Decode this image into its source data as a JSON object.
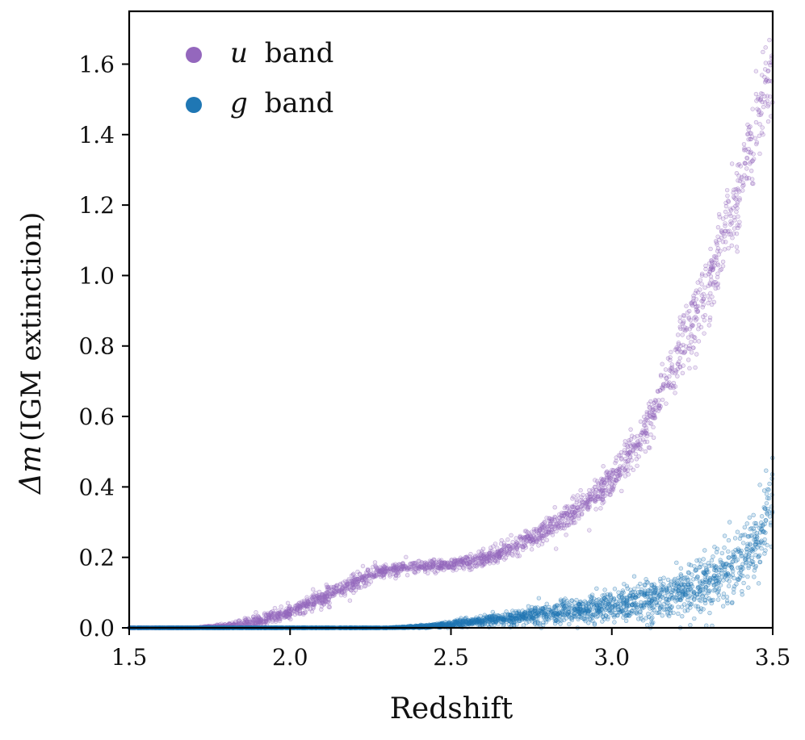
{
  "chart_data": {
    "type": "scatter",
    "title": "",
    "xlabel": "Redshift",
    "ylabel_symbol": "Δm",
    "ylabel_text": "(IGM extinction)",
    "xlim": [
      1.5,
      3.5
    ],
    "ylim": [
      0.0,
      1.75
    ],
    "xticks": [
      1.5,
      2.0,
      2.5,
      3.0,
      3.5
    ],
    "yticks": [
      0.0,
      0.2,
      0.4,
      0.6,
      0.8,
      1.0,
      1.2,
      1.4,
      1.6
    ],
    "xtick_labels": [
      "1.5",
      "2.0",
      "2.5",
      "3.0",
      "3.5"
    ],
    "ytick_labels": [
      "0.0",
      "0.2",
      "0.4",
      "0.6",
      "0.8",
      "1.0",
      "1.2",
      "1.4",
      "1.6"
    ],
    "grid": false,
    "legend_position": "top-left",
    "series": [
      {
        "name": "u band",
        "legend_symbol": "u",
        "legend_text": "band",
        "color": "#9467bd",
        "points": 2500,
        "curve_x": [
          1.5,
          1.7,
          1.8,
          1.9,
          2.0,
          2.1,
          2.2,
          2.27,
          2.35,
          2.5,
          2.6,
          2.7,
          2.8,
          2.9,
          3.0,
          3.1,
          3.2,
          3.3,
          3.4,
          3.5
        ],
        "curve_y": [
          0.0,
          0.0,
          0.005,
          0.02,
          0.045,
          0.085,
          0.13,
          0.16,
          0.17,
          0.18,
          0.195,
          0.23,
          0.28,
          0.34,
          0.42,
          0.55,
          0.75,
          0.98,
          1.25,
          1.62
        ],
        "scatter_width": [
          0.0,
          0.0,
          0.004,
          0.008,
          0.01,
          0.012,
          0.012,
          0.01,
          0.008,
          0.008,
          0.01,
          0.012,
          0.016,
          0.02,
          0.025,
          0.03,
          0.04,
          0.05,
          0.06,
          0.07
        ]
      },
      {
        "name": "g band",
        "legend_symbol": "g",
        "legend_text": "band",
        "color": "#1f77b4",
        "points": 3000,
        "curve_x": [
          1.5,
          2.2,
          2.3,
          2.4,
          2.5,
          2.6,
          2.7,
          2.8,
          2.9,
          3.0,
          3.1,
          3.2,
          3.3,
          3.4,
          3.45,
          3.5
        ],
        "curve_y": [
          0.0,
          0.0,
          0.0,
          0.003,
          0.01,
          0.02,
          0.03,
          0.04,
          0.05,
          0.06,
          0.075,
          0.095,
          0.125,
          0.18,
          0.24,
          0.36
        ],
        "scatter_width": [
          0.0,
          0.0,
          0.0,
          0.002,
          0.004,
          0.007,
          0.01,
          0.014,
          0.018,
          0.022,
          0.027,
          0.032,
          0.038,
          0.045,
          0.05,
          0.055
        ]
      }
    ]
  }
}
